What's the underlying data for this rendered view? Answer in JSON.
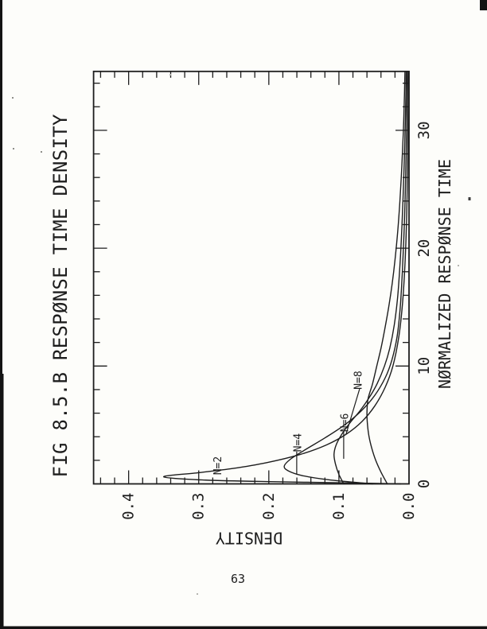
{
  "page": {
    "number": "63"
  },
  "chart_data": {
    "type": "line",
    "title": "FIG 8.5.B RESPØNSE TIME DENSITY",
    "xlabel": "NØRMALIZED RESPØNSE TIME",
    "ylabel": "DENSITY",
    "orientation": "figure printed rotated 90 degrees counterclockwise on portrait page",
    "xlim": [
      0,
      35
    ],
    "ylim": [
      0,
      0.45
    ],
    "x_ticks_major": [
      10,
      20,
      30
    ],
    "x_tick_labels": [
      {
        "value": 0,
        "label": "0"
      },
      {
        "value": 10,
        "label": "10"
      },
      {
        "value": 20,
        "label": "20"
      },
      {
        "value": 30,
        "label": "30"
      }
    ],
    "x_minor_step": 2,
    "y_ticks_major": [
      0.1,
      0.2,
      0.3,
      0.4
    ],
    "y_tick_labels": [
      {
        "value": 0.0,
        "label": "0.0"
      },
      {
        "value": 0.1,
        "label": "0.1"
      },
      {
        "value": 0.2,
        "label": "0.2"
      },
      {
        "value": 0.3,
        "label": "0.3"
      },
      {
        "value": 0.4,
        "label": "0.4"
      }
    ],
    "y_minor_step": 0.02,
    "grid": false,
    "legend": "inline curve labels with leader lines",
    "series": [
      {
        "name": "N=2",
        "label_at": [
          1.55,
          0.272
        ],
        "leader": null,
        "points": [
          [
            0,
            0.012
          ],
          [
            0.08,
            0.08
          ],
          [
            0.18,
            0.19
          ],
          [
            0.32,
            0.29
          ],
          [
            0.6,
            0.35
          ],
          [
            0.95,
            0.3
          ],
          [
            1.3,
            0.252
          ],
          [
            1.8,
            0.203
          ],
          [
            2.5,
            0.155
          ],
          [
            3.3,
            0.118
          ],
          [
            4.2,
            0.09
          ],
          [
            5.3,
            0.067
          ],
          [
            6.6,
            0.049
          ],
          [
            8.2,
            0.034
          ],
          [
            10,
            0.023
          ],
          [
            12.5,
            0.0145
          ],
          [
            15.5,
            0.009
          ],
          [
            19,
            0.0055
          ],
          [
            23,
            0.0032
          ],
          [
            27,
            0.002
          ],
          [
            31,
            0.0013
          ],
          [
            35,
            0.0008
          ]
        ]
      },
      {
        "name": "N=4",
        "label_at": [
          3.5,
          0.158
        ],
        "leader": [
          [
            2.74,
            0.1602
          ],
          [
            0.78,
            0.1602
          ]
        ],
        "points": [
          [
            0,
            0.052
          ],
          [
            0.35,
            0.115
          ],
          [
            0.7,
            0.152
          ],
          [
            1.1,
            0.172
          ],
          [
            1.5,
            0.178
          ],
          [
            2.1,
            0.169
          ],
          [
            2.9,
            0.148
          ],
          [
            3.9,
            0.12
          ],
          [
            5,
            0.092
          ],
          [
            6.2,
            0.068
          ],
          [
            7.5,
            0.049
          ],
          [
            9,
            0.034
          ],
          [
            10.5,
            0.0245
          ],
          [
            12.5,
            0.017
          ],
          [
            15,
            0.0125
          ],
          [
            18,
            0.0095
          ],
          [
            21.5,
            0.007
          ],
          [
            25,
            0.0052
          ],
          [
            29,
            0.0038
          ],
          [
            32,
            0.003
          ],
          [
            35,
            0.0024
          ]
        ]
      },
      {
        "name": "N=6",
        "label_at": [
          5.2,
          0.0909
        ],
        "leader": [
          [
            4.42,
            0.0932
          ],
          [
            2.13,
            0.0932
          ]
        ],
        "points": [
          [
            0,
            0.093
          ],
          [
            0.8,
            0.1
          ],
          [
            1.7,
            0.105
          ],
          [
            2.5,
            0.107
          ],
          [
            3.3,
            0.104
          ],
          [
            4.2,
            0.096
          ],
          [
            5.2,
            0.084
          ],
          [
            6.2,
            0.07
          ],
          [
            7.3,
            0.057
          ],
          [
            8.5,
            0.0455
          ],
          [
            10,
            0.035
          ],
          [
            11.5,
            0.0275
          ],
          [
            13.5,
            0.021
          ],
          [
            16,
            0.016
          ],
          [
            19,
            0.0125
          ],
          [
            22,
            0.01
          ],
          [
            25.5,
            0.0078
          ],
          [
            29,
            0.006
          ],
          [
            32,
            0.0048
          ],
          [
            35,
            0.004
          ]
        ]
      },
      {
        "name": "N=8",
        "label_at": [
          8.8,
          0.0716
        ],
        "leader": [
          [
            8.06,
            0.0705
          ],
          [
            4.22,
            0.0898
          ]
        ],
        "points": [
          [
            0,
            0.031
          ],
          [
            1,
            0.04
          ],
          [
            2,
            0.0475
          ],
          [
            3,
            0.053
          ],
          [
            4,
            0.057
          ],
          [
            5,
            0.0592
          ],
          [
            6,
            0.06
          ],
          [
            7.2,
            0.0585
          ],
          [
            8.5,
            0.052
          ],
          [
            10,
            0.046
          ],
          [
            11.5,
            0.04
          ],
          [
            13,
            0.035
          ],
          [
            15,
            0.029
          ],
          [
            17,
            0.024
          ],
          [
            19,
            0.02
          ],
          [
            21.5,
            0.016
          ],
          [
            24,
            0.013
          ],
          [
            27,
            0.0102
          ],
          [
            30,
            0.008
          ],
          [
            33,
            0.0065
          ],
          [
            35,
            0.0058
          ]
        ]
      }
    ]
  },
  "ink_color": "#1d1d1d",
  "artifact_color": "#131313",
  "speck_color": "#8f8f8a"
}
